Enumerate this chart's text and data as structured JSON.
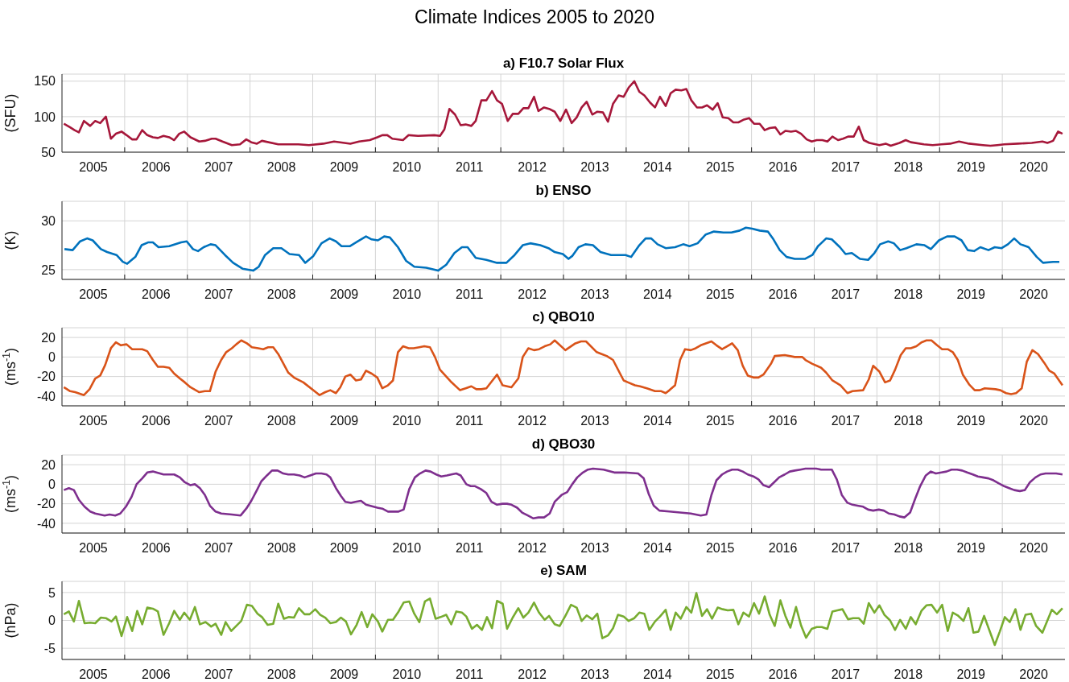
{
  "chart_data": [
    {
      "type": "line",
      "title": "a) F10.7 Solar Flux",
      "ylabel": "(SFU)",
      "annotations": [
        "Climate Indices 2005 to 2020"
      ],
      "color": "#a6173a",
      "grid": true,
      "xlim": [
        2005,
        2021
      ],
      "ylim": [
        50,
        160
      ],
      "yticks": [
        50,
        100,
        150
      ],
      "xticks": [
        {
          "value": 2005.5,
          "label": "2005"
        },
        {
          "value": 2006,
          "label": null
        },
        {
          "value": 2006.5,
          "label": "2006"
        },
        {
          "value": 2007,
          "label": null
        },
        {
          "value": 2007.5,
          "label": "2007"
        },
        {
          "value": 2008,
          "label": null
        },
        {
          "value": 2008.5,
          "label": "2008"
        },
        {
          "value": 2009,
          "label": null
        },
        {
          "value": 2009.5,
          "label": "2009"
        },
        {
          "value": 2010,
          "label": null
        },
        {
          "value": 2010.5,
          "label": "2010"
        },
        {
          "value": 2011,
          "label": null
        },
        {
          "value": 2011.5,
          "label": "2011"
        },
        {
          "value": 2012,
          "label": null
        },
        {
          "value": 2012.5,
          "label": "2012"
        },
        {
          "value": 2013,
          "label": null
        },
        {
          "value": 2013.5,
          "label": "2013"
        },
        {
          "value": 2014,
          "label": null
        },
        {
          "value": 2014.5,
          "label": "2014"
        },
        {
          "value": 2015,
          "label": null
        },
        {
          "value": 2015.5,
          "label": "2015"
        },
        {
          "value": 2016,
          "label": null
        },
        {
          "value": 2016.5,
          "label": "2016"
        },
        {
          "value": 2017,
          "label": null
        },
        {
          "value": 2017.5,
          "label": "2017"
        },
        {
          "value": 2018,
          "label": null
        },
        {
          "value": 2018.5,
          "label": "2018"
        },
        {
          "value": 2019,
          "label": null
        },
        {
          "value": 2019.5,
          "label": "2019"
        },
        {
          "value": 2020,
          "label": null
        },
        {
          "value": 2020.5,
          "label": "2020"
        }
      ],
      "x": [
        2005.03,
        2005.13,
        2005.2,
        2005.27,
        2005.35,
        2005.45,
        2005.53,
        2005.61,
        2005.7,
        2005.78,
        2005.86,
        2005.95,
        2006.03,
        2006.12,
        2006.19,
        2006.28,
        2006.36,
        2006.45,
        2006.53,
        2006.62,
        2006.71,
        2006.79,
        2006.87,
        2006.95,
        2007.05,
        2007.19,
        2007.28,
        2007.39,
        2007.45,
        2007.56,
        2007.71,
        2007.84,
        2007.94,
        2008.02,
        2008.11,
        2008.19,
        2008.45,
        2008.77,
        2008.94,
        2009.17,
        2009.34,
        2009.6,
        2009.74,
        2009.91,
        2010.03,
        2010.11,
        2010.19,
        2010.27,
        2010.44,
        2010.53,
        2010.68,
        2010.94,
        2011.03,
        2011.1,
        2011.18,
        2011.27,
        2011.36,
        2011.44,
        2011.53,
        2011.6,
        2011.69,
        2011.77,
        2011.86,
        2011.94,
        2012.02,
        2012.11,
        2012.19,
        2012.28,
        2012.36,
        2012.44,
        2012.53,
        2012.6,
        2012.69,
        2012.77,
        2012.86,
        2012.95,
        2013.04,
        2013.13,
        2013.21,
        2013.29,
        2013.37,
        2013.46,
        2013.54,
        2013.63,
        2013.71,
        2013.79,
        2013.88,
        2013.96,
        2014.04,
        2014.13,
        2014.21,
        2014.29,
        2014.38,
        2014.46,
        2014.54,
        2014.63,
        2014.71,
        2014.79,
        2014.88,
        2014.96,
        2015.04,
        2015.13,
        2015.21,
        2015.29,
        2015.38,
        2015.46,
        2015.54,
        2015.63,
        2015.71,
        2015.79,
        2015.88,
        2015.96,
        2016.04,
        2016.13,
        2016.21,
        2016.29,
        2016.38,
        2016.46,
        2016.54,
        2016.63,
        2016.71,
        2016.79,
        2016.88,
        2016.96,
        2017.04,
        2017.13,
        2017.21,
        2017.29,
        2017.38,
        2017.46,
        2017.54,
        2017.63,
        2017.71,
        2017.79,
        2017.88,
        2018.04,
        2018.14,
        2018.22,
        2018.36,
        2018.46,
        2018.54,
        2018.75,
        2018.89,
        2019.03,
        2019.17,
        2019.31,
        2019.47,
        2019.69,
        2019.81,
        2019.92,
        2020.03,
        2020.25,
        2020.47,
        2020.64,
        2020.72,
        2020.81,
        2020.89,
        2020.96
      ],
      "values": [
        90,
        85,
        81,
        78,
        94,
        87,
        94,
        91,
        100,
        69,
        76,
        79,
        74,
        68,
        68,
        81,
        74,
        71,
        70,
        73,
        71,
        67,
        76,
        79,
        71,
        65,
        66,
        69,
        69,
        65,
        60,
        61,
        68,
        64,
        62,
        66,
        61,
        61,
        60,
        62,
        65,
        62,
        65,
        67,
        71,
        74,
        74,
        69,
        67,
        74,
        73,
        74,
        73,
        82,
        111,
        103,
        88,
        89,
        87,
        94,
        123,
        123,
        136,
        123,
        118,
        94,
        104,
        104,
        112,
        112,
        128,
        108,
        113,
        111,
        107,
        94,
        110,
        91,
        99,
        113,
        121,
        103,
        107,
        106,
        93,
        118,
        130,
        128,
        141,
        150,
        135,
        130,
        120,
        113,
        128,
        115,
        133,
        138,
        137,
        139,
        123,
        113,
        113,
        116,
        110,
        119,
        99,
        98,
        92,
        92,
        96,
        98,
        90,
        90,
        81,
        84,
        85,
        75,
        80,
        79,
        80,
        76,
        68,
        65,
        67,
        67,
        65,
        72,
        67,
        69,
        72,
        72,
        86,
        67,
        63,
        60,
        62,
        59,
        63,
        67,
        64,
        61,
        60,
        61,
        62,
        65,
        62,
        60,
        59,
        60,
        61,
        62,
        63,
        65,
        63,
        66,
        79,
        76
      ]
    },
    {
      "type": "line",
      "title": "b) ENSO",
      "ylabel": "(K)",
      "color": "#0072bd",
      "grid": true,
      "xlim": [
        2005,
        2021
      ],
      "ylim": [
        24,
        32
      ],
      "yticks": [
        25,
        30
      ],
      "xticks": [
        {
          "value": 2005.5,
          "label": "2005"
        },
        {
          "value": 2006,
          "label": null
        },
        {
          "value": 2006.5,
          "label": "2006"
        },
        {
          "value": 2007,
          "label": null
        },
        {
          "value": 2007.5,
          "label": "2007"
        },
        {
          "value": 2008,
          "label": null
        },
        {
          "value": 2008.5,
          "label": "2008"
        },
        {
          "value": 2009,
          "label": null
        },
        {
          "value": 2009.5,
          "label": "2009"
        },
        {
          "value": 2010,
          "label": null
        },
        {
          "value": 2010.5,
          "label": "2010"
        },
        {
          "value": 2011,
          "label": null
        },
        {
          "value": 2011.5,
          "label": "2011"
        },
        {
          "value": 2012,
          "label": null
        },
        {
          "value": 2012.5,
          "label": "2012"
        },
        {
          "value": 2013,
          "label": null
        },
        {
          "value": 2013.5,
          "label": "2013"
        },
        {
          "value": 2014,
          "label": null
        },
        {
          "value": 2014.5,
          "label": "2014"
        },
        {
          "value": 2015,
          "label": null
        },
        {
          "value": 2015.5,
          "label": "2015"
        },
        {
          "value": 2016,
          "label": null
        },
        {
          "value": 2016.5,
          "label": "2016"
        },
        {
          "value": 2017,
          "label": null
        },
        {
          "value": 2017.5,
          "label": "2017"
        },
        {
          "value": 2018,
          "label": null
        },
        {
          "value": 2018.5,
          "label": "2018"
        },
        {
          "value": 2019,
          "label": null
        },
        {
          "value": 2019.5,
          "label": "2019"
        },
        {
          "value": 2020,
          "label": null
        },
        {
          "value": 2020.5,
          "label": "2020"
        }
      ],
      "x": [
        2005.04,
        2005.17,
        2005.29,
        2005.4,
        2005.49,
        2005.62,
        2005.72,
        2005.87,
        2005.97,
        2006.04,
        2006.17,
        2006.27,
        2006.38,
        2006.45,
        2006.54,
        2006.71,
        2006.9,
        2006.99,
        2007.09,
        2007.17,
        2007.26,
        2007.37,
        2007.45,
        2007.6,
        2007.73,
        2007.88,
        2008.05,
        2008.14,
        2008.24,
        2008.37,
        2008.5,
        2008.63,
        2008.78,
        2008.88,
        2009.01,
        2009.14,
        2009.27,
        2009.37,
        2009.46,
        2009.59,
        2009.72,
        2009.85,
        2009.94,
        2010.04,
        2010.14,
        2010.23,
        2010.36,
        2010.49,
        2010.62,
        2010.81,
        2011.0,
        2011.13,
        2011.26,
        2011.38,
        2011.47,
        2011.6,
        2011.77,
        2011.94,
        2012.09,
        2012.22,
        2012.35,
        2012.47,
        2012.63,
        2012.76,
        2012.86,
        2012.99,
        2013.08,
        2013.14,
        2013.24,
        2013.35,
        2013.47,
        2013.59,
        2013.76,
        2013.88,
        2013.99,
        2014.08,
        2014.21,
        2014.31,
        2014.4,
        2014.5,
        2014.63,
        2014.78,
        2014.91,
        2015.01,
        2015.14,
        2015.27,
        2015.4,
        2015.55,
        2015.68,
        2015.81,
        2015.91,
        2016.01,
        2016.13,
        2016.26,
        2016.35,
        2016.45,
        2016.56,
        2016.69,
        2016.85,
        2016.97,
        2017.06,
        2017.19,
        2017.28,
        2017.41,
        2017.5,
        2017.6,
        2017.73,
        2017.86,
        2017.96,
        2018.05,
        2018.18,
        2018.27,
        2018.37,
        2018.47,
        2018.63,
        2018.76,
        2018.86,
        2018.99,
        2019.12,
        2019.24,
        2019.35,
        2019.45,
        2019.55,
        2019.65,
        2019.78,
        2019.88,
        2019.99,
        2020.09,
        2020.19,
        2020.29,
        2020.42,
        2020.55,
        2020.65,
        2020.81,
        2020.91
      ],
      "values": [
        27.1,
        27.0,
        27.9,
        28.2,
        28.0,
        27.1,
        26.8,
        26.5,
        25.8,
        25.6,
        26.3,
        27.5,
        27.8,
        27.8,
        27.3,
        27.4,
        27.8,
        27.9,
        27.1,
        26.9,
        27.3,
        27.6,
        27.5,
        26.5,
        25.7,
        25.1,
        24.9,
        25.3,
        26.5,
        27.2,
        27.2,
        26.6,
        26.5,
        25.7,
        26.4,
        27.7,
        28.2,
        27.9,
        27.4,
        27.4,
        27.9,
        28.4,
        28.1,
        28.0,
        28.4,
        28.3,
        27.3,
        25.9,
        25.3,
        25.2,
        24.9,
        25.5,
        26.7,
        27.3,
        27.3,
        26.2,
        26.0,
        25.7,
        25.7,
        26.5,
        27.5,
        27.7,
        27.5,
        27.2,
        26.8,
        26.6,
        26.1,
        26.4,
        27.3,
        27.6,
        27.5,
        26.8,
        26.5,
        26.5,
        26.5,
        26.3,
        27.5,
        28.2,
        28.2,
        27.6,
        27.2,
        27.3,
        27.6,
        27.4,
        27.7,
        28.6,
        28.9,
        28.8,
        28.8,
        29.0,
        29.3,
        29.2,
        29.0,
        28.9,
        28.1,
        27.0,
        26.3,
        26.1,
        26.1,
        26.5,
        27.4,
        28.2,
        28.1,
        27.3,
        26.6,
        26.7,
        26.1,
        26.0,
        26.7,
        27.6,
        27.9,
        27.7,
        27.0,
        27.2,
        27.6,
        27.5,
        27.1,
        28.0,
        28.4,
        28.4,
        28.0,
        27.0,
        26.9,
        27.3,
        27.0,
        27.3,
        27.2,
        27.6,
        28.2,
        27.6,
        27.3,
        26.3,
        25.7,
        25.8,
        25.8
      ]
    },
    {
      "type": "line",
      "title": "c) QBO10",
      "ylabel": "(ms$^{-1}$)",
      "color": "#d95319",
      "grid": true,
      "xlim": [
        2005,
        2021
      ],
      "ylim": [
        -50,
        30
      ],
      "yticks": [
        -40,
        -20,
        0,
        20
      ],
      "xticks": [
        {
          "value": 2005.5,
          "label": "2005"
        },
        {
          "value": 2006,
          "label": null
        },
        {
          "value": 2006.5,
          "label": "2006"
        },
        {
          "value": 2007,
          "label": null
        },
        {
          "value": 2007.5,
          "label": "2007"
        },
        {
          "value": 2008,
          "label": null
        },
        {
          "value": 2008.5,
          "label": "2008"
        },
        {
          "value": 2009,
          "label": null
        },
        {
          "value": 2009.5,
          "label": "2009"
        },
        {
          "value": 2010,
          "label": null
        },
        {
          "value": 2010.5,
          "label": "2010"
        },
        {
          "value": 2011,
          "label": null
        },
        {
          "value": 2011.5,
          "label": "2011"
        },
        {
          "value": 2012,
          "label": null
        },
        {
          "value": 2012.5,
          "label": "2012"
        },
        {
          "value": 2013,
          "label": null
        },
        {
          "value": 2013.5,
          "label": "2013"
        },
        {
          "value": 2014,
          "label": null
        },
        {
          "value": 2014.5,
          "label": "2014"
        },
        {
          "value": 2015,
          "label": null
        },
        {
          "value": 2015.5,
          "label": "2015"
        },
        {
          "value": 2016,
          "label": null
        },
        {
          "value": 2016.5,
          "label": "2016"
        },
        {
          "value": 2017,
          "label": null
        },
        {
          "value": 2017.5,
          "label": "2017"
        },
        {
          "value": 2018,
          "label": null
        },
        {
          "value": 2018.5,
          "label": "2018"
        },
        {
          "value": 2019,
          "label": null
        },
        {
          "value": 2019.5,
          "label": "2019"
        },
        {
          "value": 2020,
          "label": null
        },
        {
          "value": 2020.5,
          "label": "2020"
        }
      ],
      "x": [
        2005.03,
        2005.13,
        2005.21,
        2005.35,
        2005.44,
        2005.53,
        2005.61,
        2005.69,
        2005.78,
        2005.86,
        2005.94,
        2006.03,
        2006.12,
        2006.2,
        2006.28,
        2006.36,
        2006.45,
        2006.53,
        2006.62,
        2006.71,
        2006.79,
        2006.88,
        2006.96,
        2007.05,
        2007.19,
        2007.28,
        2007.36,
        2007.45,
        2007.54,
        2007.62,
        2007.71,
        2007.78,
        2007.86,
        2007.95,
        2008.03,
        2008.13,
        2008.21,
        2008.29,
        2008.37,
        2008.45,
        2008.61,
        2008.7,
        2008.85,
        2009.11,
        2009.2,
        2009.28,
        2009.37,
        2009.44,
        2009.52,
        2009.6,
        2009.69,
        2009.77,
        2009.85,
        2009.94,
        2010.03,
        2010.11,
        2010.2,
        2010.28,
        2010.36,
        2010.44,
        2010.53,
        2010.61,
        2010.7,
        2010.78,
        2010.87,
        2010.95,
        2011.03,
        2011.2,
        2011.35,
        2011.44,
        2011.53,
        2011.61,
        2011.69,
        2011.77,
        2011.94,
        2012.03,
        2012.17,
        2012.28,
        2012.35,
        2012.44,
        2012.53,
        2012.61,
        2012.7,
        2012.79,
        2012.86,
        2013.03,
        2013.19,
        2013.28,
        2013.36,
        2013.53,
        2013.61,
        2013.69,
        2013.79,
        2013.96,
        2014.03,
        2014.14,
        2014.22,
        2014.33,
        2014.46,
        2014.56,
        2014.63,
        2014.69,
        2014.78,
        2014.86,
        2014.94,
        2015.03,
        2015.11,
        2015.19,
        2015.36,
        2015.44,
        2015.53,
        2015.61,
        2015.69,
        2015.78,
        2015.86,
        2015.94,
        2016.03,
        2016.11,
        2016.19,
        2016.31,
        2016.37,
        2016.53,
        2016.69,
        2016.81,
        2016.86,
        2016.97,
        2017.11,
        2017.19,
        2017.29,
        2017.42,
        2017.53,
        2017.61,
        2017.78,
        2017.87,
        2017.94,
        2018.04,
        2018.13,
        2018.21,
        2018.29,
        2018.38,
        2018.46,
        2018.54,
        2018.63,
        2018.71,
        2018.79,
        2018.87,
        2018.96,
        2019.04,
        2019.13,
        2019.21,
        2019.29,
        2019.37,
        2019.47,
        2019.56,
        2019.64,
        2019.72,
        2019.89,
        2019.97,
        2020.06,
        2020.14,
        2020.22,
        2020.31,
        2020.39,
        2020.48,
        2020.57,
        2020.67,
        2020.75,
        2020.83,
        2020.96
      ],
      "values": [
        -31,
        -35,
        -36,
        -39,
        -33,
        -22,
        -19,
        -8,
        9,
        15,
        12,
        13,
        8,
        8,
        8,
        6,
        -3,
        -10,
        -10,
        -11,
        -17,
        -22,
        -26,
        -31,
        -36,
        -35,
        -35,
        -15,
        -3,
        5,
        9,
        13,
        17,
        14,
        10,
        9,
        8,
        10,
        10,
        3,
        -16,
        -21,
        -26,
        -39,
        -36,
        -34,
        -37,
        -31,
        -20,
        -18,
        -24,
        -23,
        -14,
        -17,
        -21,
        -32,
        -29,
        -24,
        5,
        11,
        9,
        9,
        10,
        11,
        10,
        0,
        -13,
        -25,
        -34,
        -32,
        -30,
        -33,
        -33,
        -32,
        -18,
        -29,
        -31,
        -22,
        0,
        9,
        7,
        8,
        11,
        13,
        17,
        7,
        14,
        16,
        16,
        5,
        3,
        1,
        -3,
        -24,
        -26,
        -29,
        -30,
        -32,
        -35,
        -35,
        -37,
        -34,
        -29,
        -3,
        8,
        7,
        9,
        12,
        16,
        12,
        8,
        11,
        14,
        7,
        -9,
        -19,
        -21,
        -21,
        -18,
        -7,
        1,
        2,
        0,
        0,
        -3,
        -7,
        -11,
        -16,
        -24,
        -29,
        -37,
        -35,
        -34,
        -23,
        -9,
        -15,
        -26,
        -24,
        -13,
        2,
        9,
        9,
        11,
        15,
        17,
        17,
        12,
        8,
        8,
        5,
        -3,
        -18,
        -28,
        -34,
        -34,
        -32,
        -33,
        -34,
        -37,
        -38,
        -37,
        -32,
        -5,
        7,
        3,
        -6,
        -14,
        -17,
        -29
      ]
    },
    {
      "type": "line",
      "title": "d) QBO30",
      "ylabel": "(ms$^{-1}$)",
      "color": "#7e2f8e",
      "grid": true,
      "xlim": [
        2005,
        2021
      ],
      "ylim": [
        -50,
        30
      ],
      "yticks": [
        -40,
        -20,
        0,
        20
      ],
      "xticks": [
        {
          "value": 2005.5,
          "label": "2005"
        },
        {
          "value": 2006,
          "label": null
        },
        {
          "value": 2006.5,
          "label": "2006"
        },
        {
          "value": 2007,
          "label": null
        },
        {
          "value": 2007.5,
          "label": "2007"
        },
        {
          "value": 2008,
          "label": null
        },
        {
          "value": 2008.5,
          "label": "2008"
        },
        {
          "value": 2009,
          "label": null
        },
        {
          "value": 2009.5,
          "label": "2009"
        },
        {
          "value": 2010,
          "label": null
        },
        {
          "value": 2010.5,
          "label": "2010"
        },
        {
          "value": 2011,
          "label": null
        },
        {
          "value": 2011.5,
          "label": "2011"
        },
        {
          "value": 2012,
          "label": null
        },
        {
          "value": 2012.5,
          "label": "2012"
        },
        {
          "value": 2013,
          "label": null
        },
        {
          "value": 2013.5,
          "label": "2013"
        },
        {
          "value": 2014,
          "label": null
        },
        {
          "value": 2014.5,
          "label": "2014"
        },
        {
          "value": 2015,
          "label": null
        },
        {
          "value": 2015.5,
          "label": "2015"
        },
        {
          "value": 2016,
          "label": null
        },
        {
          "value": 2016.5,
          "label": "2016"
        },
        {
          "value": 2017,
          "label": null
        },
        {
          "value": 2017.5,
          "label": "2017"
        },
        {
          "value": 2018,
          "label": null
        },
        {
          "value": 2018.5,
          "label": "2018"
        },
        {
          "value": 2019,
          "label": null
        },
        {
          "value": 2019.5,
          "label": "2019"
        },
        {
          "value": 2020,
          "label": null
        },
        {
          "value": 2020.5,
          "label": "2020"
        }
      ],
      "x": [
        2005.03,
        2005.11,
        2005.19,
        2005.27,
        2005.36,
        2005.45,
        2005.53,
        2005.68,
        2005.76,
        2005.85,
        2005.93,
        2006.02,
        2006.11,
        2006.19,
        2006.28,
        2006.36,
        2006.45,
        2006.62,
        2006.71,
        2006.79,
        2006.88,
        2006.96,
        2007.05,
        2007.12,
        2007.2,
        2007.28,
        2007.36,
        2007.45,
        2007.54,
        2007.71,
        2007.85,
        2007.94,
        2008.02,
        2008.11,
        2008.18,
        2008.27,
        2008.35,
        2008.44,
        2008.53,
        2008.61,
        2008.7,
        2008.79,
        2008.87,
        2008.96,
        2009.05,
        2009.14,
        2009.22,
        2009.28,
        2009.37,
        2009.45,
        2009.52,
        2009.61,
        2009.68,
        2009.77,
        2009.85,
        2010.03,
        2010.11,
        2010.2,
        2010.28,
        2010.37,
        2010.45,
        2010.54,
        2010.63,
        2010.71,
        2010.8,
        2010.88,
        2010.97,
        2011.05,
        2011.14,
        2011.21,
        2011.29,
        2011.36,
        2011.45,
        2011.52,
        2011.59,
        2011.68,
        2011.77,
        2011.85,
        2011.94,
        2012.03,
        2012.1,
        2012.17,
        2012.26,
        2012.34,
        2012.43,
        2012.52,
        2012.6,
        2012.69,
        2012.78,
        2012.86,
        2012.97,
        2013.06,
        2013.14,
        2013.22,
        2013.31,
        2013.39,
        2013.47,
        2013.64,
        2013.81,
        2013.97,
        2014.19,
        2014.28,
        2014.36,
        2014.44,
        2014.53,
        2014.69,
        2014.86,
        2015.03,
        2015.11,
        2015.19,
        2015.28,
        2015.36,
        2015.44,
        2015.53,
        2015.61,
        2015.69,
        2015.78,
        2015.86,
        2015.94,
        2016.03,
        2016.11,
        2016.19,
        2016.28,
        2016.36,
        2016.44,
        2016.53,
        2016.61,
        2016.69,
        2016.78,
        2016.86,
        2016.94,
        2017.03,
        2017.11,
        2017.19,
        2017.28,
        2017.36,
        2017.44,
        2017.53,
        2017.61,
        2017.69,
        2017.78,
        2017.86,
        2017.94,
        2018.03,
        2018.11,
        2018.19,
        2018.28,
        2018.36,
        2018.44,
        2018.53,
        2018.61,
        2018.69,
        2018.78,
        2018.86,
        2018.94,
        2019.03,
        2019.11,
        2019.19,
        2019.28,
        2019.36,
        2019.44,
        2019.53,
        2019.61,
        2019.69,
        2019.78,
        2019.86,
        2019.94,
        2020.03,
        2020.11,
        2020.19,
        2020.28,
        2020.36,
        2020.44,
        2020.53,
        2020.61,
        2020.69,
        2020.78,
        2020.86,
        2020.96
      ],
      "values": [
        -6,
        -4,
        -6,
        -16,
        -23,
        -28,
        -30,
        -32,
        -31,
        -32,
        -30,
        -23,
        -13,
        0,
        6,
        12,
        13,
        10,
        10,
        10,
        7,
        2,
        -1,
        0,
        -4,
        -11,
        -22,
        -28,
        -30,
        -31,
        -32,
        -25,
        -17,
        -6,
        3,
        9,
        14,
        14,
        11,
        10,
        10,
        9,
        7,
        9,
        11,
        11,
        10,
        7,
        -4,
        -12,
        -18,
        -19,
        -18,
        -17,
        -21,
        -24,
        -25,
        -28,
        -28,
        -28,
        -26,
        -5,
        7,
        11,
        14,
        13,
        10,
        8,
        9,
        10,
        11,
        9,
        0,
        -2,
        -2,
        -5,
        -9,
        -18,
        -21,
        -20,
        -20,
        -21,
        -24,
        -29,
        -32,
        -35,
        -34,
        -34,
        -30,
        -18,
        -11,
        -8,
        0,
        7,
        12,
        15,
        16,
        15,
        12,
        12,
        11,
        6,
        -10,
        -22,
        -27,
        -28,
        -29,
        -30,
        -31,
        -32,
        -31,
        -11,
        4,
        10,
        13,
        15,
        15,
        13,
        10,
        8,
        5,
        -1,
        -3,
        2,
        7,
        10,
        13,
        14,
        15,
        16,
        16,
        16,
        15,
        15,
        15,
        5,
        -11,
        -19,
        -21,
        -22,
        -23,
        -26,
        -27,
        -26,
        -27,
        -30,
        -31,
        -33,
        -34,
        -29,
        -15,
        -2,
        9,
        13,
        11,
        12,
        13,
        15,
        15,
        14,
        12,
        10,
        8,
        7,
        6,
        4,
        1,
        -2,
        -4,
        -6,
        -7,
        -6,
        2,
        7,
        10,
        11,
        11,
        11,
        10
      ]
    },
    {
      "type": "line",
      "title": "e) SAM",
      "ylabel": "(hPa)",
      "color": "#77ac30",
      "grid": true,
      "xlim": [
        2005,
        2021
      ],
      "ylim": [
        -7,
        7
      ],
      "yticks": [
        -5,
        0,
        5
      ],
      "xticks": [
        {
          "value": 2005.5,
          "label": "2005"
        },
        {
          "value": 2006,
          "label": null
        },
        {
          "value": 2006.5,
          "label": "2006"
        },
        {
          "value": 2007,
          "label": null
        },
        {
          "value": 2007.5,
          "label": "2007"
        },
        {
          "value": 2008,
          "label": null
        },
        {
          "value": 2008.5,
          "label": "2008"
        },
        {
          "value": 2009,
          "label": null
        },
        {
          "value": 2009.5,
          "label": "2009"
        },
        {
          "value": 2010,
          "label": null
        },
        {
          "value": 2010.5,
          "label": "2010"
        },
        {
          "value": 2011,
          "label": null
        },
        {
          "value": 2011.5,
          "label": "2011"
        },
        {
          "value": 2012,
          "label": null
        },
        {
          "value": 2012.5,
          "label": "2012"
        },
        {
          "value": 2013,
          "label": null
        },
        {
          "value": 2013.5,
          "label": "2013"
        },
        {
          "value": 2014,
          "label": null
        },
        {
          "value": 2014.5,
          "label": "2014"
        },
        {
          "value": 2015,
          "label": null
        },
        {
          "value": 2015.5,
          "label": "2015"
        },
        {
          "value": 2016,
          "label": null
        },
        {
          "value": 2016.5,
          "label": "2016"
        },
        {
          "value": 2017,
          "label": null
        },
        {
          "value": 2017.5,
          "label": "2017"
        },
        {
          "value": 2018,
          "label": null
        },
        {
          "value": 2018.5,
          "label": "2018"
        },
        {
          "value": 2019,
          "label": null
        },
        {
          "value": 2019.5,
          "label": "2019"
        },
        {
          "value": 2020,
          "label": null
        },
        {
          "value": 2020.5,
          "label": "2020"
        }
      ],
      "x": [
        2005.03,
        2005.11,
        2005.19,
        2005.27,
        2005.36,
        2005.45,
        2005.53,
        2005.62,
        2005.7,
        2005.79,
        2005.86,
        2005.95,
        2006.04,
        2006.12,
        2006.2,
        2006.28,
        2006.36,
        2006.45,
        2006.53,
        2006.62,
        2006.71,
        2006.79,
        2006.88,
        2006.95,
        2007.04,
        2007.12,
        2007.2,
        2007.29,
        2007.38,
        2007.45,
        2007.54,
        2007.61,
        2007.7,
        2007.78,
        2007.86,
        2007.95,
        2008.03,
        2008.12,
        2008.19,
        2008.28,
        2008.37,
        2008.45,
        2008.54,
        2008.62,
        2008.7,
        2008.78,
        2008.87,
        2008.95,
        2009.04,
        2009.12,
        2009.2,
        2009.28,
        2009.37,
        2009.45,
        2009.53,
        2009.61,
        2009.7,
        2009.78,
        2009.87,
        2009.95,
        2010.04,
        2010.11,
        2010.2,
        2010.28,
        2010.37,
        2010.45,
        2010.54,
        2010.62,
        2010.7,
        2010.79,
        2010.87,
        2010.96,
        2011.04,
        2011.13,
        2011.21,
        2011.29,
        2011.38,
        2011.45,
        2011.54,
        2011.62,
        2011.7,
        2011.78,
        2011.86,
        2011.94,
        2012.03,
        2012.1,
        2012.19,
        2012.28,
        2012.36,
        2012.44,
        2012.53,
        2012.61,
        2012.7,
        2012.77,
        2012.86,
        2012.94,
        2013.03,
        2013.12,
        2013.21,
        2013.29,
        2013.37,
        2013.46,
        2013.54,
        2013.62,
        2013.71,
        2013.79,
        2013.87,
        2013.96,
        2014.04,
        2014.13,
        2014.21,
        2014.29,
        2014.37,
        2014.46,
        2014.54,
        2014.63,
        2014.71,
        2014.79,
        2014.87,
        2014.96,
        2015.04,
        2015.12,
        2015.21,
        2015.29,
        2015.37,
        2015.46,
        2015.54,
        2015.62,
        2015.71,
        2015.79,
        2015.87,
        2015.96,
        2016.04,
        2016.12,
        2016.21,
        2016.29,
        2016.37,
        2016.46,
        2016.54,
        2016.62,
        2016.71,
        2016.79,
        2016.87,
        2016.96,
        2017.04,
        2017.12,
        2017.21,
        2017.29,
        2017.37,
        2017.45,
        2017.54,
        2017.62,
        2017.71,
        2017.79,
        2017.87,
        2017.96,
        2018.04,
        2018.12,
        2018.21,
        2018.29,
        2018.37,
        2018.46,
        2018.54,
        2018.62,
        2018.71,
        2018.79,
        2018.87,
        2018.96,
        2019.04,
        2019.13,
        2019.21,
        2019.29,
        2019.38,
        2019.46,
        2019.54,
        2019.62,
        2019.71,
        2019.88,
        2019.96,
        2020.04,
        2020.12,
        2020.21,
        2020.29,
        2020.37,
        2020.46,
        2020.54,
        2020.64,
        2020.79,
        2020.87,
        2020.96
      ],
      "values": [
        1.1,
        1.6,
        -0.2,
        3.5,
        -0.5,
        -0.4,
        -0.5,
        0.5,
        0.4,
        -0.2,
        0.7,
        -2.8,
        0.6,
        -1.9,
        1.7,
        -0.7,
        2.3,
        2.1,
        1.6,
        -2.6,
        -0.5,
        1.7,
        0.1,
        1.4,
        0.1,
        2.4,
        -0.7,
        -0.3,
        -1.1,
        -0.6,
        -2.6,
        -0.3,
        -1.9,
        -1.0,
        -0.1,
        2.8,
        2.6,
        1.2,
        0.6,
        -0.8,
        -0.6,
        3.0,
        0.3,
        0.6,
        0.5,
        2.2,
        1.1,
        1.1,
        2.0,
        1.0,
        0.5,
        -0.5,
        -0.3,
        0.5,
        -0.2,
        -2.5,
        -0.8,
        1.5,
        -1.2,
        1.1,
        -0.2,
        -2.0,
        0.1,
        0.1,
        1.6,
        3.2,
        3.4,
        1.2,
        -0.3,
        3.4,
        3.9,
        0.3,
        0.6,
        1.0,
        -0.7,
        1.6,
        1.4,
        0.7,
        -1.5,
        -0.8,
        -1.7,
        0.6,
        -1.4,
        3.5,
        3.0,
        -1.5,
        0.5,
        2.2,
        0.5,
        1.4,
        3.2,
        1.4,
        0.1,
        0.8,
        -0.7,
        -1.0,
        0.8,
        2.8,
        2.3,
        -0.1,
        0.9,
        0.2,
        1.2,
        -3.2,
        -2.7,
        -1.4,
        1.0,
        0.7,
        -0.1,
        0.4,
        1.4,
        1.2,
        -1.7,
        -0.2,
        0.7,
        1.9,
        -1.7,
        1.4,
        0.3,
        2.4,
        1.4,
        4.9,
        0.8,
        2.0,
        0.3,
        2.3,
        2.0,
        1.8,
        1.9,
        -0.7,
        1.4,
        0.7,
        3.1,
        1.2,
        4.3,
        1.0,
        -1.0,
        3.6,
        0.8,
        -1.3,
        2.4,
        -0.9,
        -3.1,
        -1.5,
        -1.2,
        -1.2,
        -1.5,
        1.6,
        1.8,
        2.0,
        0.2,
        0.4,
        0.4,
        -0.6,
        3.1,
        1.4,
        2.7,
        1.0,
        0.0,
        -1.7,
        0.1,
        -1.5,
        0.6,
        -0.7,
        1.7,
        2.7,
        2.8,
        1.4,
        2.8,
        -1.9,
        1.4,
        0.9,
        -0.1,
        2.2,
        -2.2,
        -2.0,
        0.8,
        -4.4,
        -2.0,
        0.6,
        -0.3,
        2.0,
        -1.7,
        1.0,
        1.2,
        -1.0,
        -2.2,
        1.9,
        1.1,
        2.2
      ]
    }
  ]
}
